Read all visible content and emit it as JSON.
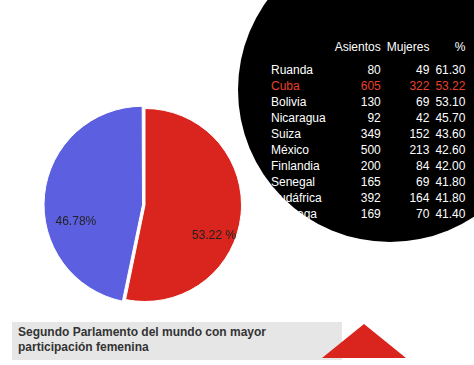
{
  "chart_data": {
    "type": "pie",
    "title": "Segundo Parlamento del mundo con mayor participación femenina",
    "categories": [
      null,
      null
    ],
    "values": [
      53.22,
      46.78
    ],
    "value_labels": [
      "53.22 %",
      "46.78%"
    ],
    "colors": [
      "#d9251d",
      "#5b5fe0"
    ],
    "data_labels": true
  },
  "table": {
    "columns": [
      "Asientos",
      "Mujeres",
      "%"
    ],
    "rows": [
      [
        "Ruanda",
        "80",
        "49",
        "61.30"
      ],
      [
        "Cuba",
        "605",
        "322",
        "53.22"
      ],
      [
        "Bolivia",
        "130",
        "69",
        "53.10"
      ],
      [
        "Nicaragua",
        "92",
        "42",
        "45.70"
      ],
      [
        "Suiza",
        "349",
        "152",
        "43.60"
      ],
      [
        "México",
        "500",
        "213",
        "42.60"
      ],
      [
        "Finlandia",
        "200",
        "84",
        "42.00"
      ],
      [
        "Senegal",
        "165",
        "69",
        "41.80"
      ],
      [
        "Sudáfrica",
        "392",
        "164",
        "41.80"
      ],
      [
        "Noruega",
        "169",
        "70",
        "41.40"
      ]
    ]
  }
}
